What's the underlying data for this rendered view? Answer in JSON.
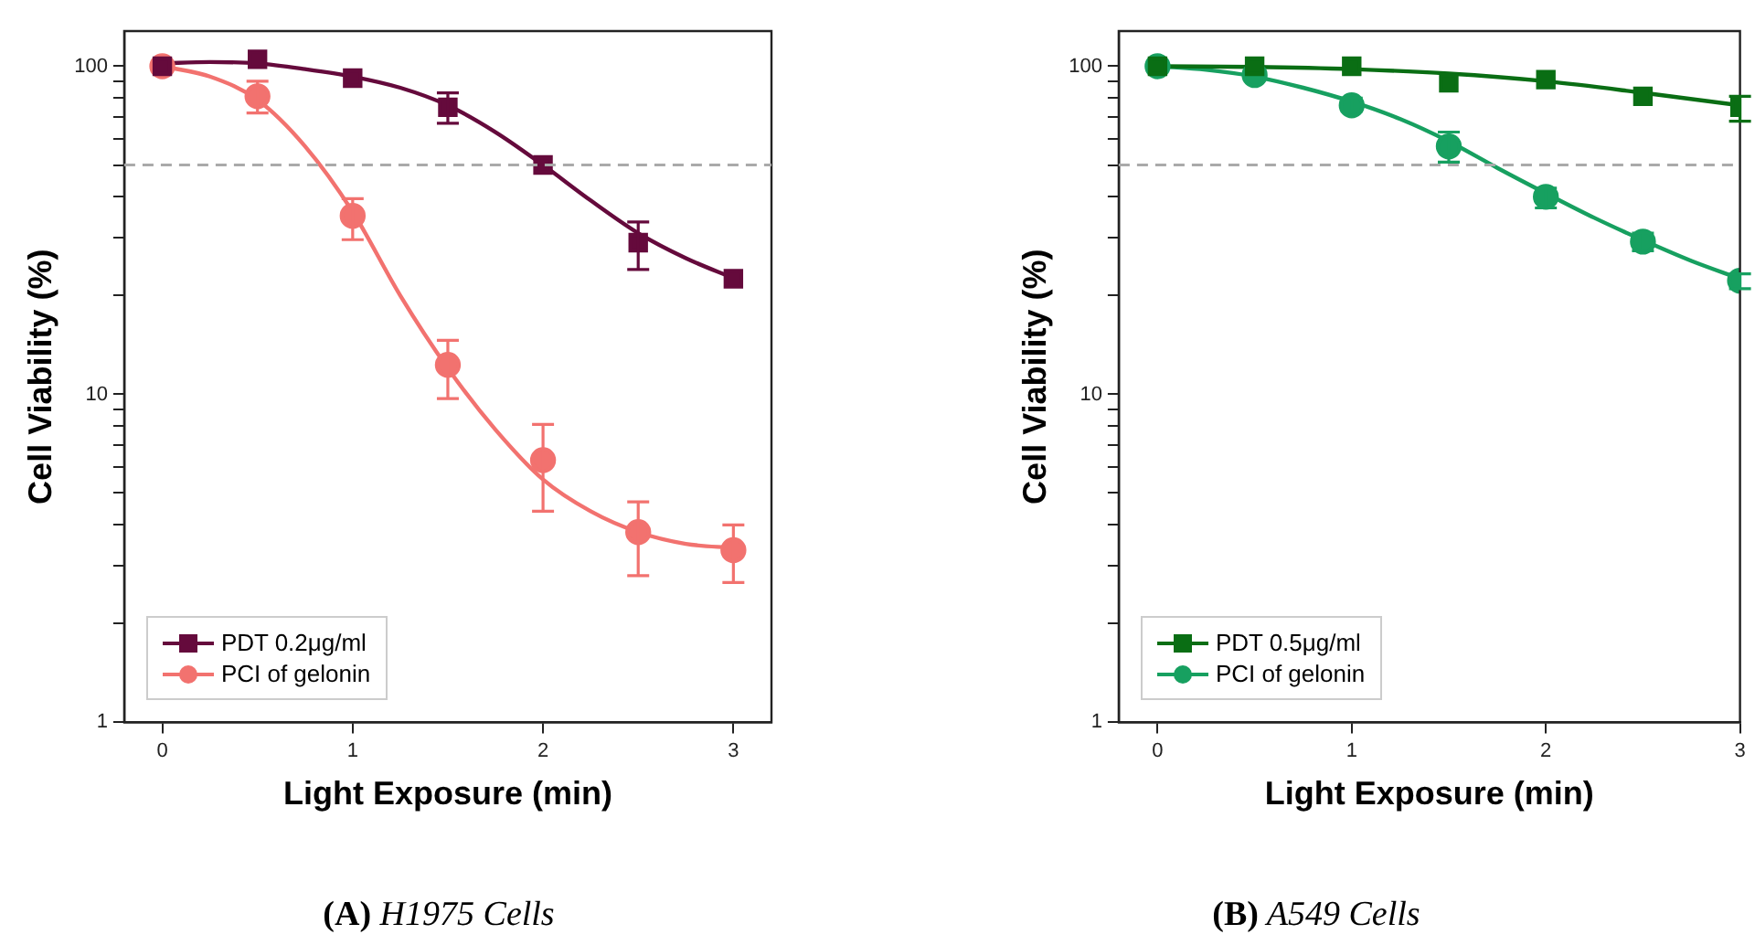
{
  "chart_data": [
    {
      "type": "scatter",
      "title": "(A) H1975 Cells",
      "xlabel": "Light Exposure (min)",
      "ylabel": "Cell Viability (%)",
      "log": "y",
      "grid": false,
      "legend": "bottom left",
      "xlim": [
        -0.2,
        3.2
      ],
      "xticks": [
        0,
        1,
        2,
        3
      ],
      "ylim": [
        1,
        128
      ],
      "yticks": [
        1,
        {
          "value": 2,
          "label": null
        },
        {
          "value": 3,
          "label": null
        },
        {
          "value": 4,
          "label": null
        },
        {
          "value": 5,
          "label": null
        },
        {
          "value": 6,
          "label": null
        },
        {
          "value": 7,
          "label": null
        },
        {
          "value": 8,
          "label": null
        },
        {
          "value": 9,
          "label": null
        },
        10,
        {
          "value": 20,
          "label": null
        },
        {
          "value": 30,
          "label": null
        },
        {
          "value": 40,
          "label": null
        },
        {
          "value": 50,
          "label": null
        },
        {
          "value": 60,
          "label": null
        },
        {
          "value": 70,
          "label": null
        },
        {
          "value": 80,
          "label": null
        },
        {
          "value": 90,
          "label": null
        },
        100
      ],
      "ref_lines": [
        {
          "axis": "y",
          "value": 50,
          "color": "#aaaaaa",
          "line_style": "dashed"
        }
      ],
      "series": [
        {
          "type": "line",
          "color": "#650a3c",
          "marker": "none",
          "line_style": "solid",
          "x": [
            0,
            0.25,
            0.5,
            0.75,
            1,
            1.25,
            1.5,
            1.75,
            2,
            2.25,
            2.5,
            2.75,
            3
          ],
          "values": [
            102,
            103,
            102,
            98,
            93,
            86,
            76,
            63,
            50,
            39,
            31,
            26,
            22.6
          ]
        },
        {
          "type": "line",
          "color": "#f2726f",
          "marker": "none",
          "line_style": "solid",
          "x": [
            0,
            0.25,
            0.5,
            0.75,
            1,
            1.25,
            1.5,
            1.75,
            2,
            2.25,
            2.5,
            2.75,
            3
          ],
          "values": [
            100,
            93,
            79,
            57,
            36,
            20,
            12,
            7.8,
            5.5,
            4.4,
            3.8,
            3.5,
            3.4
          ]
        },
        {
          "type": "scatter",
          "name": "PDT 0.2μg/ml",
          "color": "#650a3c",
          "marker": "square",
          "x": [
            0,
            0.5,
            1,
            1.5,
            2,
            2.5,
            3
          ],
          "values": [
            100,
            105,
            92,
            75,
            50,
            29,
            22.5
          ],
          "errors": [
            null,
            null,
            null,
            [
              67,
              83
            ],
            null,
            [
              24,
              33.5
            ],
            null
          ]
        },
        {
          "type": "scatter",
          "name": "PCI of gelonin",
          "color": "#f2726f",
          "marker": "circle",
          "x": [
            0,
            0.5,
            1,
            1.5,
            2,
            2.5,
            3
          ],
          "values": [
            100,
            81,
            35,
            12.3,
            6.3,
            3.8,
            3.35
          ],
          "errors": [
            null,
            [
              72,
              90
            ],
            [
              29.6,
              39.5
            ],
            [
              9.7,
              14.6
            ],
            [
              4.4,
              8.1
            ],
            [
              2.8,
              4.7
            ],
            [
              2.67,
              4.0
            ]
          ]
        }
      ]
    },
    {
      "type": "scatter",
      "title": "(B) A549 Cells",
      "xlabel": "Light Exposure (min)",
      "ylabel": "Cell Viability (%)",
      "log": "y",
      "grid": false,
      "legend": "bottom left",
      "xlim": [
        -0.2,
        3.0
      ],
      "xticks": [
        0,
        1,
        2,
        3
      ],
      "ylim": [
        1,
        128
      ],
      "yticks": [
        1,
        {
          "value": 2,
          "label": null
        },
        {
          "value": 3,
          "label": null
        },
        {
          "value": 4,
          "label": null
        },
        {
          "value": 5,
          "label": null
        },
        {
          "value": 6,
          "label": null
        },
        {
          "value": 7,
          "label": null
        },
        {
          "value": 8,
          "label": null
        },
        {
          "value": 9,
          "label": null
        },
        10,
        {
          "value": 20,
          "label": null
        },
        {
          "value": 30,
          "label": null
        },
        {
          "value": 40,
          "label": null
        },
        {
          "value": 50,
          "label": null
        },
        {
          "value": 60,
          "label": null
        },
        {
          "value": 70,
          "label": null
        },
        {
          "value": 80,
          "label": null
        },
        {
          "value": 90,
          "label": null
        },
        100
      ],
      "ref_lines": [
        {
          "axis": "y",
          "value": 50,
          "color": "#aaaaaa",
          "line_style": "dashed"
        }
      ],
      "series": [
        {
          "type": "line",
          "color": "#0a6e14",
          "marker": "none",
          "line_style": "solid",
          "x": [
            0,
            0.5,
            1,
            1.5,
            2,
            2.5,
            3
          ],
          "values": [
            100,
            99.5,
            98,
            95,
            90,
            83,
            76
          ]
        },
        {
          "type": "line",
          "color": "#17a060",
          "marker": "none",
          "line_style": "solid",
          "x": [
            0,
            0.25,
            0.5,
            0.75,
            1,
            1.25,
            1.5,
            1.75,
            2,
            2.25,
            2.5,
            2.75,
            3
          ],
          "values": [
            100,
            97.5,
            93,
            86,
            78,
            69,
            59,
            49,
            41,
            34.5,
            29.5,
            25.5,
            22.5
          ]
        },
        {
          "type": "scatter",
          "name": "PDT 0.5μg/ml",
          "color": "#0a6e14",
          "marker": "square",
          "x": [
            0,
            0.5,
            1,
            1.5,
            2,
            2.5,
            3
          ],
          "values": [
            100,
            100,
            100,
            89,
            91,
            81,
            75
          ],
          "errors": [
            null,
            null,
            null,
            null,
            null,
            null,
            [
              68,
              81
            ]
          ]
        },
        {
          "type": "scatter",
          "name": "PCI of gelonin",
          "color": "#17a060",
          "marker": "circle",
          "x": [
            0,
            0.5,
            1,
            1.5,
            2,
            2.5,
            3
          ],
          "values": [
            100,
            94,
            76,
            57,
            40,
            29.2,
            22.2
          ],
          "errors": [
            null,
            null,
            [
              73,
              80
            ],
            [
              51,
              63
            ],
            [
              37,
              42.5
            ],
            [
              27.4,
              31
            ],
            [
              21,
              23.3
            ]
          ]
        }
      ]
    }
  ]
}
